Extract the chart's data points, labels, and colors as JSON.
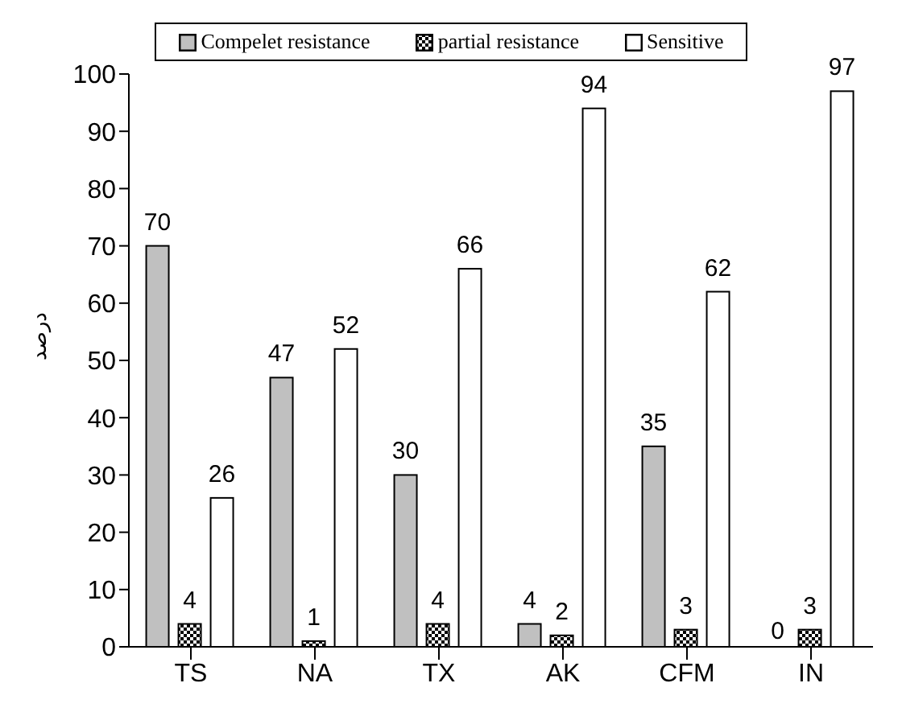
{
  "chart_data": {
    "type": "bar",
    "ylabel": "درصد",
    "categories": [
      "TS",
      "NA",
      "TX",
      "AK",
      "CFM",
      "IN"
    ],
    "series": [
      {
        "name": "Compelet resistance",
        "color": "#c0c0c0",
        "values": [
          70,
          47,
          30,
          4,
          35,
          0
        ]
      },
      {
        "name": "partial resistance",
        "color": "#000000",
        "values": [
          4,
          1,
          4,
          2,
          3,
          3
        ]
      },
      {
        "name": "Sensitive",
        "color": "#ffffff",
        "values": [
          26,
          52,
          66,
          94,
          62,
          97
        ]
      }
    ],
    "ylim": [
      0,
      100
    ],
    "yticks": [
      0,
      10,
      20,
      30,
      40,
      50,
      60,
      70,
      80,
      90,
      100
    ],
    "grid": false,
    "legend": "top",
    "data_labels": true
  }
}
